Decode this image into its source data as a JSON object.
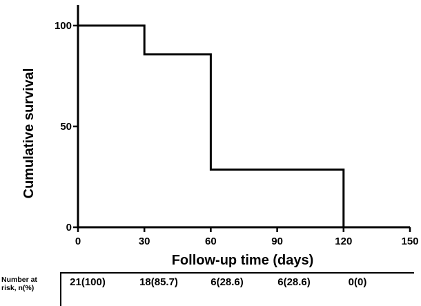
{
  "chart_data": {
    "type": "line",
    "step": true,
    "title": "",
    "xlabel": "Follow-up time (days)",
    "ylabel": "Cumulative survival",
    "xlim": [
      0,
      150
    ],
    "ylim": [
      0,
      100
    ],
    "x_ticks": [
      "0",
      "30",
      "60",
      "90",
      "120",
      "150"
    ],
    "y_ticks": [
      "0",
      "50",
      "100"
    ],
    "series": [
      {
        "x": [
          0,
          30,
          30,
          60,
          60,
          120,
          120
        ],
        "y": [
          100,
          100,
          85.7,
          85.7,
          28.6,
          28.6,
          0
        ]
      }
    ],
    "risk_table": {
      "header_lines": [
        "Number at",
        "risk, n(%)"
      ],
      "values": [
        "21(100)",
        "18(85.7)",
        "6(28.6)",
        "6(28.6)",
        "0(0)"
      ]
    },
    "grid": false,
    "legend": "none",
    "line_color": "#000000"
  }
}
